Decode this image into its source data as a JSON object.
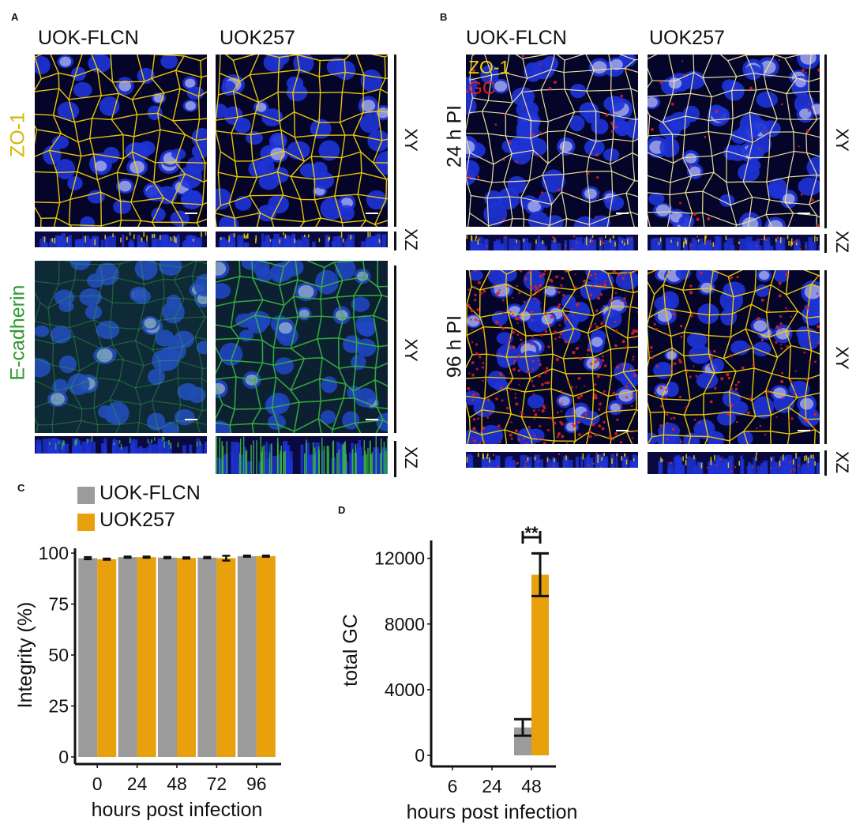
{
  "panels": {
    "A": {
      "letter": "A",
      "columns": [
        "UOK-FLCN",
        "UOK257"
      ],
      "rows": [
        {
          "label": "ZO-1",
          "color": "#d4b800",
          "views": [
            "XY",
            "XZ"
          ]
        },
        {
          "label": "E-cadherin",
          "color": "#2e9a2e",
          "views": [
            "XY",
            "XZ"
          ]
        }
      ]
    },
    "B": {
      "letter": "B",
      "columns": [
        "UOK-FLCN",
        "UOK257"
      ],
      "overlay_labels": [
        {
          "text": "ZO-1",
          "color": "#f2d000"
        },
        {
          "text": "GC",
          "color": "#e02020"
        }
      ],
      "rows": [
        {
          "label": "24 h PI",
          "views": [
            "XY",
            "XZ"
          ]
        },
        {
          "label": "96 h PI",
          "views": [
            "XY",
            "XZ"
          ]
        }
      ]
    },
    "C": {
      "letter": "C"
    },
    "D": {
      "letter": "D"
    }
  },
  "colors": {
    "series_flcn": "#9b9b9b",
    "series_uok257": "#e8a00c",
    "nuclei_blue": "#1e33d6",
    "zo1_yellow": "#f2d000",
    "ecad_green": "#38b83a",
    "gc_red": "#e02020"
  },
  "chart_data": [
    {
      "type": "bar",
      "panel": "C",
      "categories": [
        "0",
        "24",
        "48",
        "72",
        "96"
      ],
      "series": [
        {
          "name": "UOK-FLCN",
          "values": [
            97.5,
            98,
            97.8,
            97.8,
            98.5
          ],
          "errors": [
            0.5,
            0.3,
            0.3,
            0.3,
            0.3
          ]
        },
        {
          "name": "UOK257",
          "values": [
            97,
            98,
            97.6,
            97.5,
            98.5
          ],
          "errors": [
            0.3,
            0.3,
            0.3,
            1.2,
            0.3
          ]
        }
      ],
      "xlabel": "hours post infection",
      "ylabel": "Integrity (%)",
      "yticks": [
        0,
        25,
        50,
        75,
        100
      ],
      "ylim": [
        0,
        100
      ],
      "legend": "top-left"
    },
    {
      "type": "bar",
      "panel": "D",
      "categories": [
        "6",
        "24",
        "48"
      ],
      "series": [
        {
          "name": "UOK-FLCN",
          "values": [
            0,
            0,
            1700
          ],
          "errors": [
            0,
            0,
            500
          ]
        },
        {
          "name": "UOK257",
          "values": [
            0,
            0,
            11000
          ],
          "errors": [
            0,
            0,
            1300
          ]
        }
      ],
      "xlabel": "hours post infection",
      "ylabel": "total GC",
      "yticks": [
        0,
        4000,
        8000,
        12000
      ],
      "ylim": [
        0,
        12800
      ],
      "significance": {
        "category": "48",
        "label": "**"
      }
    }
  ]
}
